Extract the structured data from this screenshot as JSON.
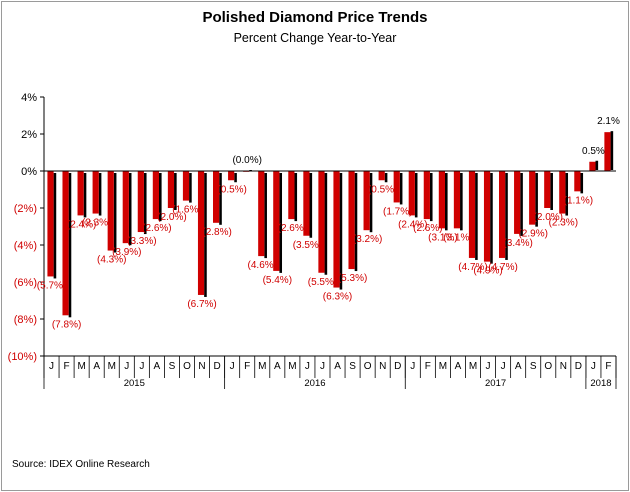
{
  "chart_data": {
    "type": "bar",
    "title": "Polished Diamond Price Trends",
    "subtitle": "Percent Change Year-to-Year",
    "source": "Source: IDEX Online Research",
    "ylim": [
      -10,
      4
    ],
    "yticks": [
      4,
      2,
      0,
      -2,
      -4,
      -6,
      -8,
      -10
    ],
    "ytick_labels": [
      "4%",
      "2%",
      "0%",
      "(2%)",
      "(4%)",
      "(6%)",
      "(8%)",
      "(10%)"
    ],
    "categories": [
      "J",
      "F",
      "M",
      "A",
      "M",
      "J",
      "J",
      "A",
      "S",
      "O",
      "N",
      "D",
      "J",
      "F",
      "M",
      "A",
      "M",
      "J",
      "J",
      "A",
      "S",
      "O",
      "N",
      "D",
      "J",
      "F",
      "M",
      "A",
      "M",
      "J",
      "J",
      "A",
      "S",
      "O",
      "N",
      "D",
      "J",
      "F"
    ],
    "years": [
      {
        "label": "2015",
        "count": 12
      },
      {
        "label": "2016",
        "count": 12
      },
      {
        "label": "2017",
        "count": 12
      },
      {
        "label": "2018",
        "count": 2
      }
    ],
    "values": [
      -5.7,
      -7.8,
      -2.4,
      -2.3,
      -4.3,
      -3.9,
      -3.3,
      -2.6,
      -2.0,
      -1.6,
      -6.7,
      -2.8,
      -0.5,
      -0.0,
      -4.6,
      -5.4,
      -2.6,
      -3.5,
      -5.5,
      -6.3,
      -5.3,
      -3.2,
      -0.5,
      -1.7,
      -2.4,
      -2.6,
      -3.1,
      -3.1,
      -4.7,
      -4.9,
      -4.7,
      -3.4,
      -2.9,
      -2.0,
      -2.3,
      -1.1,
      0.5,
      2.1
    ],
    "data_labels": [
      "(5.7%)",
      "(7.8%)",
      "(2.4%)",
      "(2.3%)",
      "(4.3%)",
      "(3.9%)",
      "(3.3%)",
      "(2.6%)",
      "(2.0%)",
      "(1.6%)",
      "(6.7%)",
      "(2.8%)",
      "(0.5%)",
      "(0.0%)",
      "(4.6%)",
      "(5.4%)",
      "(2.6%)",
      "(3.5%)",
      "(5.5%)",
      "(6.3%)",
      "(5.3%)",
      "(3.2%)",
      "(0.5%)",
      "(1.7%)",
      "(2.4%)",
      "(2.6%)",
      "(3.1%)",
      "(3.1%)",
      "(4.7%)",
      "(4.9%)",
      "(4.7%)",
      "(3.4%)",
      "(2.9%)",
      "(2.0%)",
      "(2.3%)",
      "(1.1%)",
      "0.5%",
      "2.1%"
    ],
    "colors": {
      "bar": "#d00000",
      "shadow": "#000000",
      "label_negative": "#d00000",
      "label_positive": "#000000",
      "axis": "#000000"
    }
  }
}
